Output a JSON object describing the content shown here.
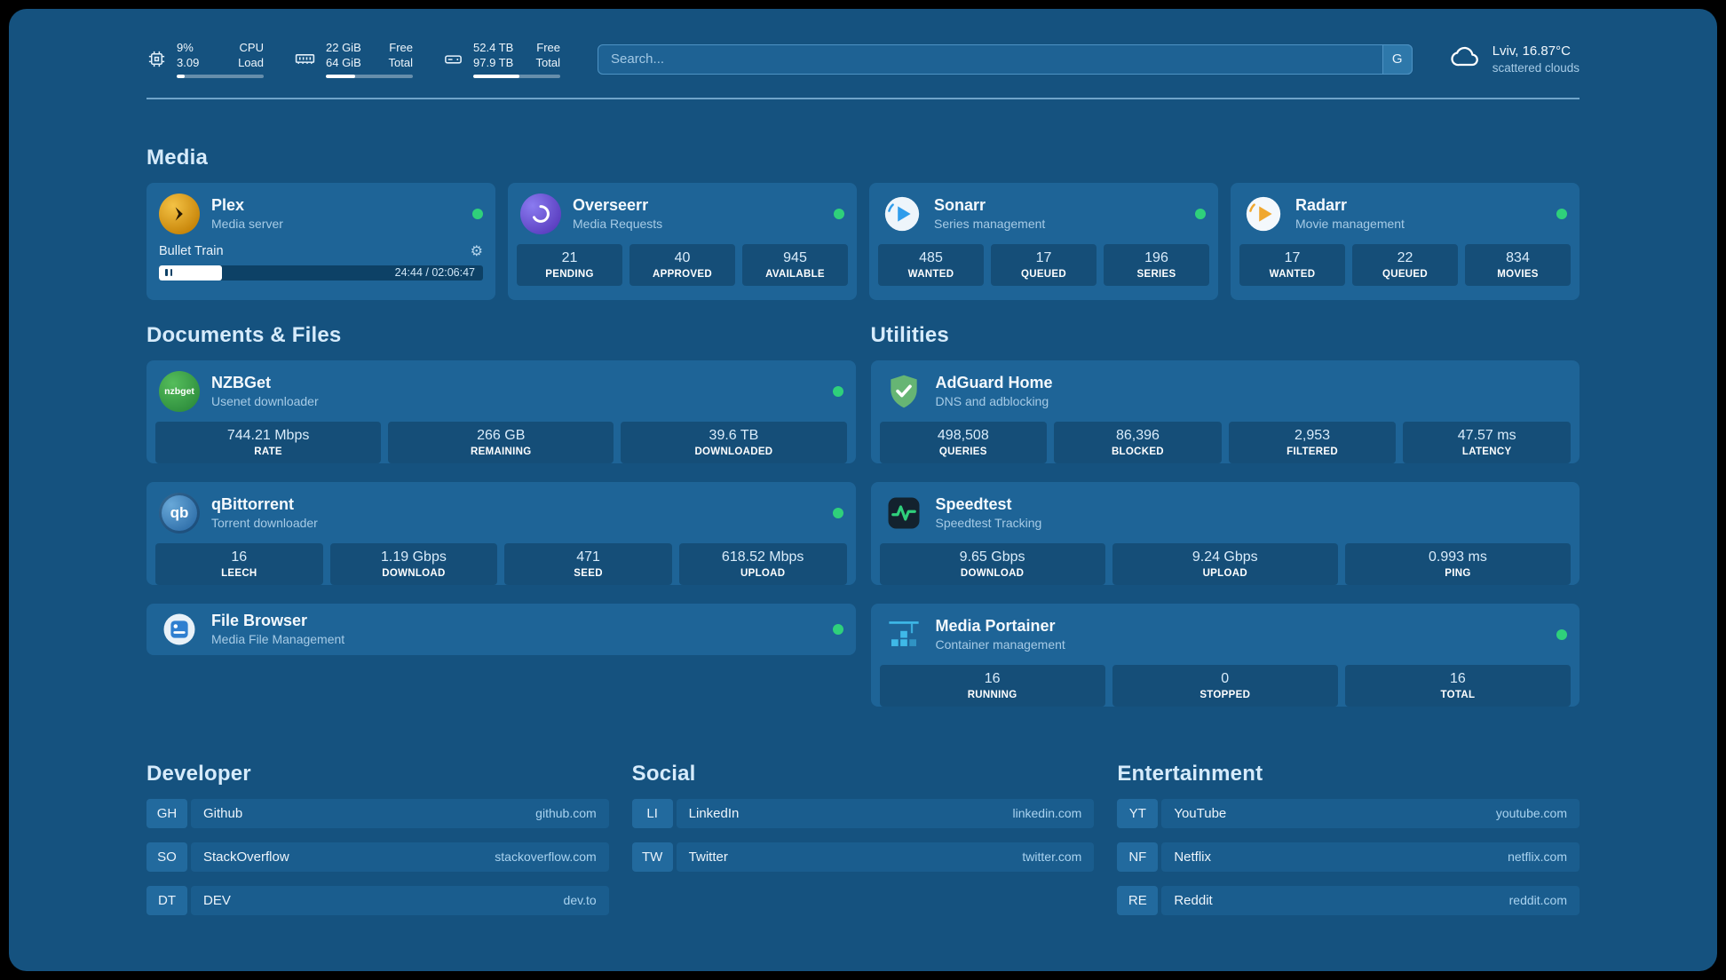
{
  "colors": {
    "background": "#15527f",
    "card": "#1e6497",
    "status_online": "#2fd07b",
    "heading_text": "#d6ebfb",
    "muted_text": "#a6cbe6"
  },
  "topbar": {
    "cpu": {
      "percent": "9%",
      "load": "3.09",
      "label_top": "CPU",
      "label_bottom": "Load",
      "progress": 9
    },
    "memory": {
      "free": "22 GiB",
      "total": "64 GiB",
      "label_top": "Free",
      "label_bottom": "Total",
      "progress": 34
    },
    "disk": {
      "free": "52.4 TB",
      "total": "97.9 TB",
      "label_top": "Free",
      "label_bottom": "Total",
      "progress": 53
    },
    "search": {
      "placeholder": "Search...",
      "button_label": "G"
    },
    "weather": {
      "location": "Lviv, 16.87°C",
      "condition": "scattered clouds"
    }
  },
  "media": {
    "heading": "Media",
    "cards": [
      {
        "name": "Plex",
        "subtitle": "Media server",
        "status": "online",
        "now_playing": {
          "title": "Bullet Train",
          "time": "24:44 / 02:06:47",
          "progress": 19.5
        }
      },
      {
        "name": "Overseerr",
        "subtitle": "Media Requests",
        "status": "online",
        "stats": [
          {
            "value": "21",
            "label": "PENDING"
          },
          {
            "value": "40",
            "label": "APPROVED"
          },
          {
            "value": "945",
            "label": "AVAILABLE"
          }
        ]
      },
      {
        "name": "Sonarr",
        "subtitle": "Series management",
        "status": "online",
        "stats": [
          {
            "value": "485",
            "label": "WANTED"
          },
          {
            "value": "17",
            "label": "QUEUED"
          },
          {
            "value": "196",
            "label": "SERIES"
          }
        ]
      },
      {
        "name": "Radarr",
        "subtitle": "Movie management",
        "status": "online",
        "stats": [
          {
            "value": "17",
            "label": "WANTED"
          },
          {
            "value": "22",
            "label": "QUEUED"
          },
          {
            "value": "834",
            "label": "MOVIES"
          }
        ]
      }
    ]
  },
  "documents": {
    "heading": "Documents & Files",
    "cards": [
      {
        "name": "NZBGet",
        "subtitle": "Usenet downloader",
        "status": "online",
        "stats": [
          {
            "value": "744.21 Mbps",
            "label": "RATE"
          },
          {
            "value": "266 GB",
            "label": "REMAINING"
          },
          {
            "value": "39.6 TB",
            "label": "DOWNLOADED"
          }
        ]
      },
      {
        "name": "qBittorrent",
        "subtitle": "Torrent downloader",
        "status": "online",
        "stats": [
          {
            "value": "16",
            "label": "LEECH"
          },
          {
            "value": "1.19 Gbps",
            "label": "DOWNLOAD"
          },
          {
            "value": "471",
            "label": "SEED"
          },
          {
            "value": "618.52 Mbps",
            "label": "UPLOAD"
          }
        ]
      },
      {
        "name": "File Browser",
        "subtitle": "Media File Management",
        "status": "online"
      }
    ]
  },
  "utilities": {
    "heading": "Utilities",
    "cards": [
      {
        "name": "AdGuard Home",
        "subtitle": "DNS and adblocking",
        "stats": [
          {
            "value": "498,508",
            "label": "QUERIES"
          },
          {
            "value": "86,396",
            "label": "BLOCKED"
          },
          {
            "value": "2,953",
            "label": "FILTERED"
          },
          {
            "value": "47.57 ms",
            "label": "LATENCY"
          }
        ]
      },
      {
        "name": "Speedtest",
        "subtitle": "Speedtest Tracking",
        "stats": [
          {
            "value": "9.65 Gbps",
            "label": "DOWNLOAD"
          },
          {
            "value": "9.24 Gbps",
            "label": "UPLOAD"
          },
          {
            "value": "0.993 ms",
            "label": "PING"
          }
        ]
      },
      {
        "name": "Media Portainer",
        "subtitle": "Container management",
        "status": "online",
        "stats": [
          {
            "value": "16",
            "label": "RUNNING"
          },
          {
            "value": "0",
            "label": "STOPPED"
          },
          {
            "value": "16",
            "label": "TOTAL"
          }
        ]
      }
    ]
  },
  "bookmarks": [
    {
      "heading": "Developer",
      "items": [
        {
          "abbr": "GH",
          "name": "Github",
          "url": "github.com"
        },
        {
          "abbr": "SO",
          "name": "StackOverflow",
          "url": "stackoverflow.com"
        },
        {
          "abbr": "DT",
          "name": "DEV",
          "url": "dev.to"
        }
      ]
    },
    {
      "heading": "Social",
      "items": [
        {
          "abbr": "LI",
          "name": "LinkedIn",
          "url": "linkedin.com"
        },
        {
          "abbr": "TW",
          "name": "Twitter",
          "url": "twitter.com"
        }
      ]
    },
    {
      "heading": "Entertainment",
      "items": [
        {
          "abbr": "YT",
          "name": "YouTube",
          "url": "youtube.com"
        },
        {
          "abbr": "NF",
          "name": "Netflix",
          "url": "netflix.com"
        },
        {
          "abbr": "RE",
          "name": "Reddit",
          "url": "reddit.com"
        }
      ]
    }
  ]
}
